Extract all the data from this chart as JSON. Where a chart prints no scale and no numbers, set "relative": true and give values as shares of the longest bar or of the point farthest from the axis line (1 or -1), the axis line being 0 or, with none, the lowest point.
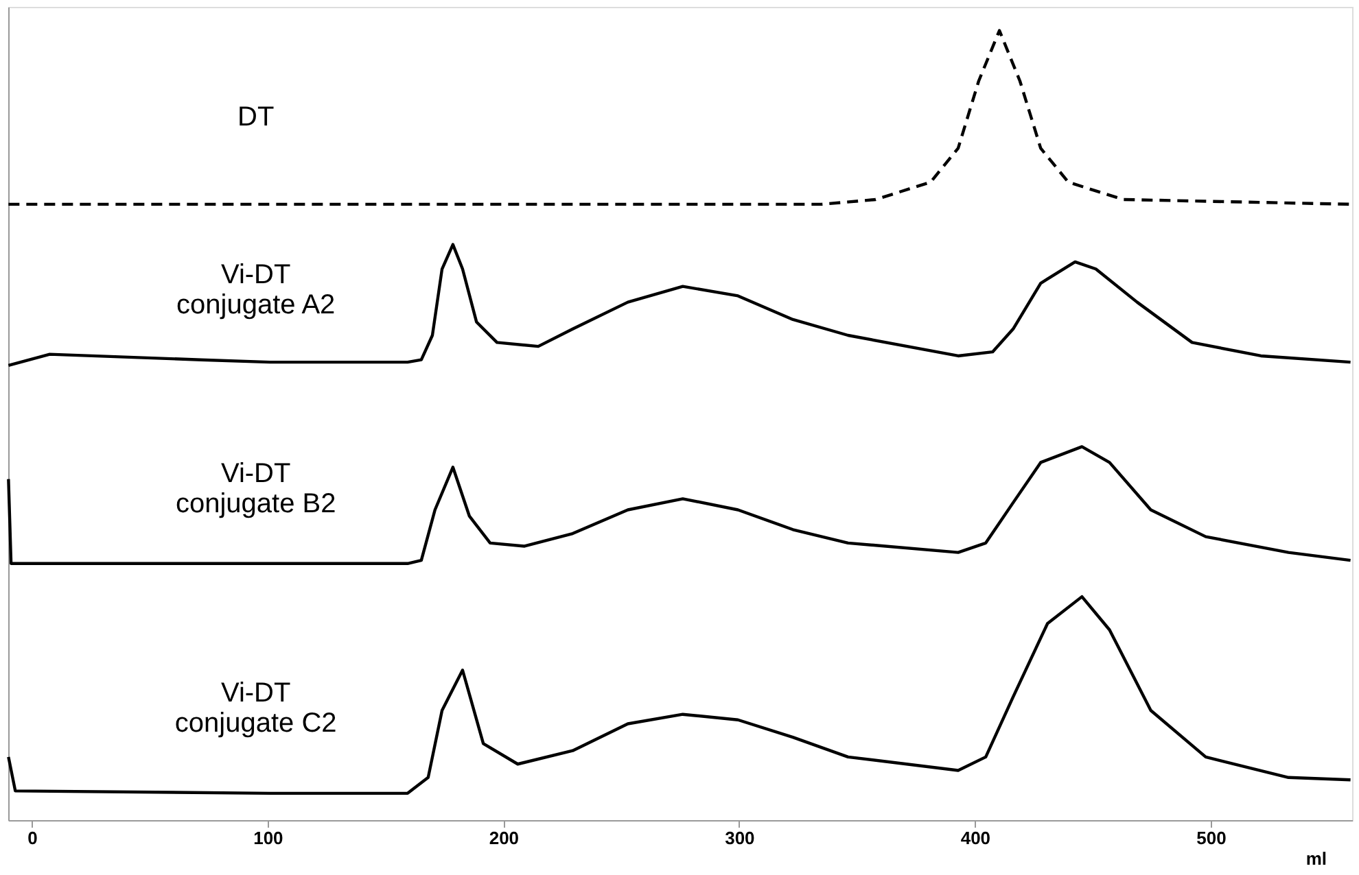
{
  "chart_data": {
    "type": "line",
    "relative": true,
    "xlabel": "ml",
    "xlim": [
      -10,
      560
    ],
    "xticks": [
      0,
      100,
      200,
      300,
      400,
      500
    ],
    "tick_labels": "x",
    "grid": false,
    "marker": "none",
    "series": [
      {
        "name": "DT",
        "color": "#000000",
        "line_style": "dashed",
        "x": [
          -9.9,
          159.4,
          335.0,
          357.9,
          381.2,
          392.9,
          401.6,
          410.4,
          419.1,
          427.9,
          439.6,
          462.9,
          559.3
        ],
        "values": [
          0.78,
          0.78,
          0.78,
          0.786,
          0.808,
          0.851,
          0.936,
          1.0,
          0.936,
          0.851,
          0.808,
          0.786,
          0.78
        ]
      },
      {
        "name": "Vi-DT conjugate A2",
        "color": "#000000",
        "line_style": "solid",
        "x": [
          -9.9,
          7.6,
          71.8,
          101,
          159.4,
          165.2,
          169.9,
          174.0,
          178.6,
          182.7,
          188.6,
          197.3,
          214.8,
          229.4,
          252.8,
          276.1,
          299.5,
          322.8,
          346.2,
          392.9,
          407.5,
          416.2,
          427.9,
          442.5,
          451.3,
          468.8,
          492.1,
          521.3,
          559.3
        ],
        "values": [
          0.576,
          0.59,
          0.583,
          0.58,
          0.58,
          0.583,
          0.614,
          0.698,
          0.729,
          0.698,
          0.631,
          0.605,
          0.6,
          0.622,
          0.656,
          0.676,
          0.664,
          0.634,
          0.614,
          0.588,
          0.593,
          0.622,
          0.68,
          0.707,
          0.698,
          0.656,
          0.605,
          0.588,
          0.58
        ]
      },
      {
        "name": "Vi-DT conjugate B2",
        "color": "#000000",
        "line_style": "solid",
        "x": [
          -9.9,
          -8.8,
          101,
          159.4,
          165.2,
          171.0,
          178.6,
          185.6,
          194.4,
          209.0,
          229.4,
          252.8,
          276.1,
          299.5,
          322.8,
          346.2,
          392.9,
          404.6,
          416.2,
          427.9,
          445.4,
          457.1,
          474.6,
          497.9,
          533.0,
          559.3
        ],
        "values": [
          0.432,
          0.325,
          0.325,
          0.325,
          0.329,
          0.393,
          0.447,
          0.385,
          0.351,
          0.347,
          0.363,
          0.393,
          0.407,
          0.393,
          0.368,
          0.351,
          0.339,
          0.351,
          0.402,
          0.453,
          0.473,
          0.453,
          0.393,
          0.359,
          0.339,
          0.329
        ]
      },
      {
        "name": "Vi-DT conjugate C2",
        "color": "#000000",
        "line_style": "solid",
        "x": [
          -9.9,
          -7.0,
          101,
          159.4,
          168.1,
          174.0,
          182.7,
          191.5,
          206.1,
          229.4,
          252.8,
          276.1,
          299.5,
          322.8,
          346.2,
          392.9,
          404.6,
          416.2,
          430.8,
          445.4,
          457.1,
          474.6,
          497.9,
          533.0,
          559.3
        ],
        "values": [
          0.08,
          0.037,
          0.034,
          0.034,
          0.054,
          0.139,
          0.19,
          0.097,
          0.071,
          0.088,
          0.122,
          0.134,
          0.127,
          0.105,
          0.08,
          0.063,
          0.08,
          0.156,
          0.249,
          0.283,
          0.241,
          0.139,
          0.08,
          0.054,
          0.051
        ]
      }
    ]
  }
}
